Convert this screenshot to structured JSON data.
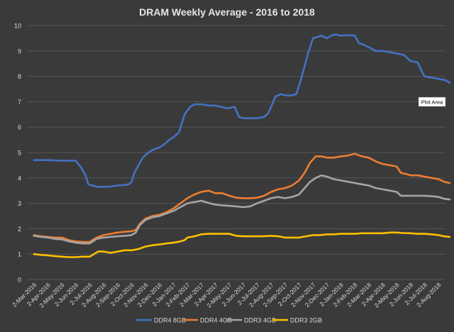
{
  "chart_data": {
    "type": "line",
    "title": "DRAM Weekly Average - 2016 to 2018",
    "xlabel": "",
    "ylabel": "",
    "ylim": [
      0,
      10
    ],
    "yticks": [
      "0",
      "1",
      "2",
      "3",
      "4",
      "5",
      "6",
      "7",
      "8",
      "9",
      "10"
    ],
    "xtick_labels": [
      "2-Mar-2016",
      "2-Apr-2016",
      "2-May-2016",
      "2-Jun-2016",
      "2-Jul-2016",
      "2-Aug-2016",
      "2-Sep-2016",
      "2-Oct-2016",
      "2-Nov-2016",
      "2-Dec-2016",
      "2-Jan-2017",
      "2-Feb-2017",
      "2-Mar-2017",
      "2-Apr-2017",
      "2-May-2017",
      "2-Jun-2017",
      "2-Jul-2017",
      "2-Aug-2017",
      "2-Sep-2017",
      "2-Oct-2017",
      "2-Nov-2017",
      "2-Dec-2017",
      "2-Jan-2018",
      "2-Feb-2018",
      "2-Mar-2018",
      "2-Apr-2018",
      "2-May-2018",
      "2-Jun-2018",
      "2-Jul-2018",
      "2-Aug-2018"
    ],
    "grid": true,
    "legend_position": "bottom",
    "tooltip": "Plot Area",
    "colors": {
      "background": "#3a3a3a",
      "grid": "#555555",
      "text": "#e6e6e6",
      "tick_text": "#d9d9d9"
    },
    "series": [
      {
        "name": "DDR4 8GB",
        "color": "#4472c4",
        "points": [
          [
            0,
            4.7
          ],
          [
            1,
            4.7
          ],
          [
            2,
            4.68
          ],
          [
            3,
            4.68
          ],
          [
            3.4,
            4.4
          ],
          [
            3.7,
            4.1
          ],
          [
            3.9,
            3.75
          ],
          [
            4.2,
            3.7
          ],
          [
            4.5,
            3.65
          ],
          [
            5,
            3.65
          ],
          [
            5.5,
            3.66
          ],
          [
            6,
            3.7
          ],
          [
            6.5,
            3.72
          ],
          [
            6.8,
            3.75
          ],
          [
            7,
            3.85
          ],
          [
            7.2,
            4.2
          ],
          [
            7.5,
            4.5
          ],
          [
            7.8,
            4.8
          ],
          [
            8.2,
            5.0
          ],
          [
            8.5,
            5.1
          ],
          [
            9,
            5.2
          ],
          [
            9.3,
            5.3
          ],
          [
            9.7,
            5.5
          ],
          [
            10,
            5.6
          ],
          [
            10.4,
            5.8
          ],
          [
            10.8,
            6.5
          ],
          [
            11.2,
            6.8
          ],
          [
            11.5,
            6.9
          ],
          [
            12,
            6.9
          ],
          [
            12.5,
            6.85
          ],
          [
            13,
            6.85
          ],
          [
            13.4,
            6.8
          ],
          [
            13.7,
            6.75
          ],
          [
            14,
            6.75
          ],
          [
            14.4,
            6.8
          ],
          [
            14.7,
            6.4
          ],
          [
            15,
            6.35
          ],
          [
            15.5,
            6.35
          ],
          [
            16,
            6.35
          ],
          [
            16.5,
            6.4
          ],
          [
            16.8,
            6.55
          ],
          [
            17,
            6.8
          ],
          [
            17.3,
            7.2
          ],
          [
            17.7,
            7.3
          ],
          [
            18,
            7.25
          ],
          [
            18.5,
            7.25
          ],
          [
            18.8,
            7.3
          ],
          [
            19.1,
            7.8
          ],
          [
            19.4,
            8.4
          ],
          [
            19.7,
            9.0
          ],
          [
            20,
            9.5
          ],
          [
            20.3,
            9.55
          ],
          [
            20.6,
            9.6
          ],
          [
            21,
            9.5
          ],
          [
            21.3,
            9.6
          ],
          [
            21.6,
            9.65
          ],
          [
            22,
            9.6
          ],
          [
            22.5,
            9.62
          ],
          [
            23,
            9.6
          ],
          [
            23.3,
            9.3
          ],
          [
            23.6,
            9.25
          ],
          [
            24,
            9.15
          ],
          [
            24.5,
            9.0
          ],
          [
            25,
            9.0
          ],
          [
            25.5,
            8.95
          ],
          [
            26,
            8.9
          ],
          [
            26.5,
            8.85
          ],
          [
            27,
            8.6
          ],
          [
            27.5,
            8.55
          ],
          [
            27.8,
            8.2
          ],
          [
            28,
            8.0
          ],
          [
            28.5,
            7.95
          ],
          [
            29,
            7.9
          ],
          [
            29.5,
            7.85
          ],
          [
            29.8,
            7.75
          ]
        ]
      },
      {
        "name": "DDR4 4GB",
        "color": "#ed7d31",
        "points": [
          [
            0,
            1.75
          ],
          [
            0.5,
            1.7
          ],
          [
            1,
            1.68
          ],
          [
            1.5,
            1.65
          ],
          [
            2,
            1.65
          ],
          [
            2.5,
            1.55
          ],
          [
            3,
            1.5
          ],
          [
            3.5,
            1.48
          ],
          [
            4,
            1.48
          ],
          [
            4.5,
            1.65
          ],
          [
            5,
            1.75
          ],
          [
            5.5,
            1.8
          ],
          [
            6,
            1.85
          ],
          [
            6.5,
            1.88
          ],
          [
            7,
            1.9
          ],
          [
            7.3,
            1.95
          ],
          [
            7.6,
            2.2
          ],
          [
            8,
            2.4
          ],
          [
            8.5,
            2.5
          ],
          [
            9,
            2.55
          ],
          [
            9.5,
            2.65
          ],
          [
            10,
            2.8
          ],
          [
            10.5,
            3.0
          ],
          [
            11,
            3.2
          ],
          [
            11.5,
            3.35
          ],
          [
            12,
            3.45
          ],
          [
            12.5,
            3.5
          ],
          [
            13,
            3.4
          ],
          [
            13.5,
            3.4
          ],
          [
            14,
            3.3
          ],
          [
            14.5,
            3.22
          ],
          [
            15,
            3.2
          ],
          [
            15.5,
            3.2
          ],
          [
            16,
            3.22
          ],
          [
            16.5,
            3.3
          ],
          [
            17,
            3.45
          ],
          [
            17.5,
            3.55
          ],
          [
            18,
            3.6
          ],
          [
            18.5,
            3.7
          ],
          [
            19,
            3.9
          ],
          [
            19.4,
            4.2
          ],
          [
            19.8,
            4.6
          ],
          [
            20.2,
            4.85
          ],
          [
            20.6,
            4.85
          ],
          [
            21,
            4.8
          ],
          [
            21.5,
            4.8
          ],
          [
            22,
            4.85
          ],
          [
            22.5,
            4.88
          ],
          [
            23,
            4.95
          ],
          [
            23.5,
            4.85
          ],
          [
            24,
            4.8
          ],
          [
            24.5,
            4.65
          ],
          [
            25,
            4.55
          ],
          [
            25.5,
            4.5
          ],
          [
            26,
            4.45
          ],
          [
            26.3,
            4.2
          ],
          [
            26.7,
            4.15
          ],
          [
            27,
            4.1
          ],
          [
            27.5,
            4.1
          ],
          [
            28,
            4.05
          ],
          [
            28.5,
            4.0
          ],
          [
            29,
            3.95
          ],
          [
            29.4,
            3.85
          ],
          [
            29.8,
            3.8
          ]
        ]
      },
      {
        "name": "DDR3 4GB",
        "color": "#a5a5a5",
        "points": [
          [
            0,
            1.72
          ],
          [
            0.5,
            1.68
          ],
          [
            1,
            1.65
          ],
          [
            1.5,
            1.6
          ],
          [
            2,
            1.58
          ],
          [
            2.5,
            1.5
          ],
          [
            3,
            1.45
          ],
          [
            3.5,
            1.42
          ],
          [
            4,
            1.42
          ],
          [
            4.5,
            1.6
          ],
          [
            5,
            1.65
          ],
          [
            5.5,
            1.68
          ],
          [
            6,
            1.7
          ],
          [
            6.5,
            1.72
          ],
          [
            7,
            1.75
          ],
          [
            7.3,
            1.85
          ],
          [
            7.6,
            2.15
          ],
          [
            8,
            2.35
          ],
          [
            8.5,
            2.45
          ],
          [
            9,
            2.5
          ],
          [
            9.5,
            2.6
          ],
          [
            10,
            2.7
          ],
          [
            10.5,
            2.85
          ],
          [
            11,
            3.0
          ],
          [
            11.5,
            3.05
          ],
          [
            12,
            3.1
          ],
          [
            12.3,
            3.05
          ],
          [
            12.6,
            3.0
          ],
          [
            13,
            2.95
          ],
          [
            13.5,
            2.92
          ],
          [
            14,
            2.9
          ],
          [
            14.5,
            2.88
          ],
          [
            15,
            2.85
          ],
          [
            15.5,
            2.88
          ],
          [
            16,
            3.0
          ],
          [
            16.5,
            3.1
          ],
          [
            17,
            3.2
          ],
          [
            17.5,
            3.25
          ],
          [
            18,
            3.2
          ],
          [
            18.5,
            3.25
          ],
          [
            19,
            3.35
          ],
          [
            19.4,
            3.6
          ],
          [
            19.8,
            3.85
          ],
          [
            20.2,
            4.0
          ],
          [
            20.6,
            4.1
          ],
          [
            21,
            4.05
          ],
          [
            21.5,
            3.95
          ],
          [
            22,
            3.9
          ],
          [
            22.5,
            3.85
          ],
          [
            23,
            3.8
          ],
          [
            23.5,
            3.75
          ],
          [
            24,
            3.7
          ],
          [
            24.5,
            3.6
          ],
          [
            25,
            3.55
          ],
          [
            25.5,
            3.5
          ],
          [
            26,
            3.45
          ],
          [
            26.3,
            3.3
          ],
          [
            26.7,
            3.3
          ],
          [
            27,
            3.3
          ],
          [
            27.5,
            3.3
          ],
          [
            28,
            3.3
          ],
          [
            28.5,
            3.28
          ],
          [
            29,
            3.25
          ],
          [
            29.4,
            3.18
          ],
          [
            29.8,
            3.15
          ]
        ]
      },
      {
        "name": "DDR3 2GB",
        "color": "#ffc000",
        "points": [
          [
            0,
            1.0
          ],
          [
            0.5,
            0.97
          ],
          [
            1,
            0.95
          ],
          [
            1.5,
            0.92
          ],
          [
            2,
            0.9
          ],
          [
            2.5,
            0.88
          ],
          [
            3,
            0.88
          ],
          [
            3.5,
            0.9
          ],
          [
            4,
            0.9
          ],
          [
            4.3,
            1.0
          ],
          [
            4.6,
            1.1
          ],
          [
            5,
            1.1
          ],
          [
            5.5,
            1.05
          ],
          [
            6,
            1.1
          ],
          [
            6.5,
            1.15
          ],
          [
            7,
            1.15
          ],
          [
            7.5,
            1.2
          ],
          [
            8,
            1.3
          ],
          [
            8.5,
            1.35
          ],
          [
            9,
            1.38
          ],
          [
            9.5,
            1.42
          ],
          [
            10,
            1.45
          ],
          [
            10.5,
            1.5
          ],
          [
            10.8,
            1.55
          ],
          [
            11,
            1.65
          ],
          [
            11.5,
            1.7
          ],
          [
            12,
            1.78
          ],
          [
            12.5,
            1.8
          ],
          [
            13,
            1.8
          ],
          [
            13.5,
            1.8
          ],
          [
            14,
            1.8
          ],
          [
            14.5,
            1.72
          ],
          [
            15,
            1.7
          ],
          [
            15.5,
            1.7
          ],
          [
            16,
            1.7
          ],
          [
            16.5,
            1.7
          ],
          [
            17,
            1.72
          ],
          [
            17.5,
            1.7
          ],
          [
            18,
            1.65
          ],
          [
            18.5,
            1.65
          ],
          [
            19,
            1.65
          ],
          [
            19.5,
            1.7
          ],
          [
            20,
            1.75
          ],
          [
            20.5,
            1.75
          ],
          [
            21,
            1.78
          ],
          [
            21.5,
            1.78
          ],
          [
            22,
            1.8
          ],
          [
            22.5,
            1.8
          ],
          [
            23,
            1.8
          ],
          [
            23.5,
            1.82
          ],
          [
            24,
            1.82
          ],
          [
            24.5,
            1.82
          ],
          [
            25,
            1.82
          ],
          [
            25.5,
            1.85
          ],
          [
            26,
            1.85
          ],
          [
            26.5,
            1.83
          ],
          [
            27,
            1.82
          ],
          [
            27.5,
            1.8
          ],
          [
            28,
            1.8
          ],
          [
            28.5,
            1.78
          ],
          [
            29,
            1.75
          ],
          [
            29.4,
            1.7
          ],
          [
            29.8,
            1.68
          ]
        ]
      }
    ]
  }
}
